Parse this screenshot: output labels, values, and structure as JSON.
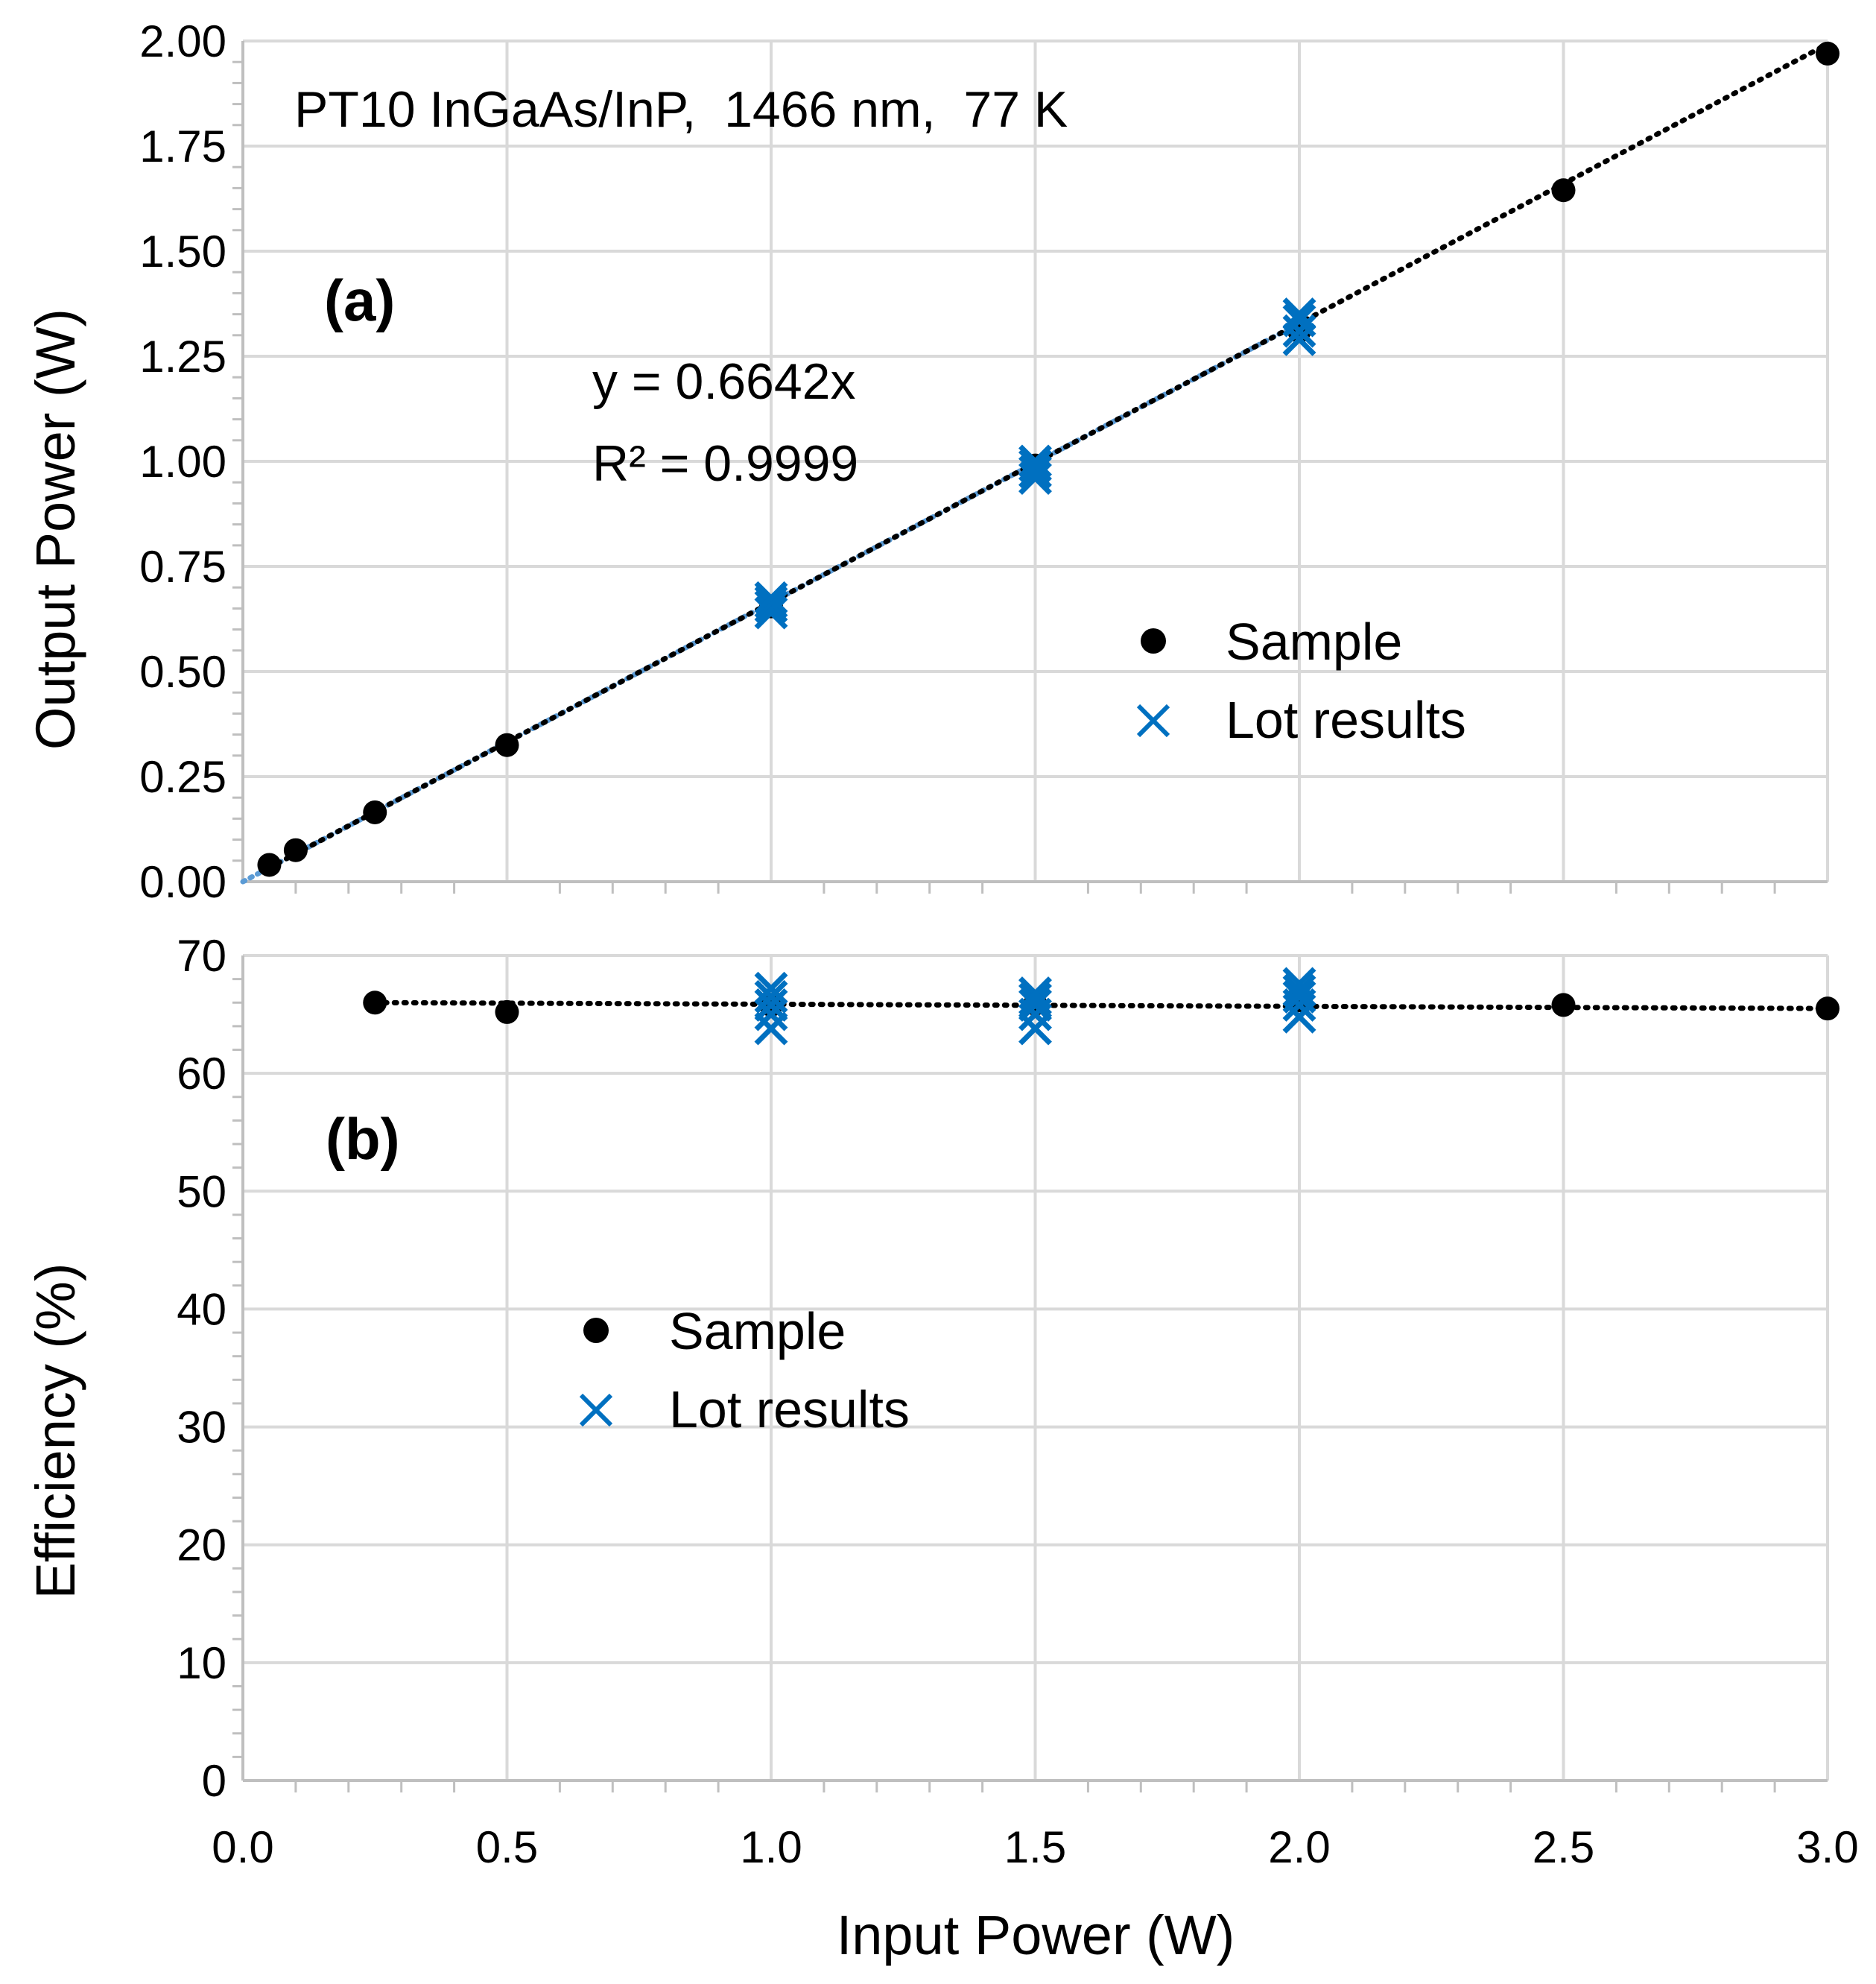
{
  "chart_data": [
    {
      "panel": "(a)",
      "type": "scatter",
      "annotation_title": "PT10 InGaAs/InP,  1466 nm,  77 K",
      "ylabel": "Output Power (W)",
      "xlabel": "",
      "xlim": [
        0,
        3
      ],
      "ylim": [
        0,
        2
      ],
      "x_ticks": [
        "0.0",
        "0.5",
        "1.0",
        "1.5",
        "2.0",
        "2.5",
        "3.0"
      ],
      "y_ticks": [
        "0.00",
        "0.25",
        "0.50",
        "0.75",
        "1.00",
        "1.25",
        "1.50",
        "1.75",
        "2.00"
      ],
      "fit": {
        "equation": "y = 0.6642x",
        "r2": "R² = 0.9999",
        "slope": 0.6642
      },
      "series": [
        {
          "name": "Sample",
          "marker": "circle",
          "color": "#000000",
          "x": [
            0.05,
            0.1,
            0.25,
            0.5,
            1.0,
            1.5,
            2.0,
            2.5,
            3.0
          ],
          "y": [
            0.04,
            0.075,
            0.165,
            0.325,
            0.655,
            0.99,
            1.31,
            1.645,
            1.97
          ]
        },
        {
          "name": "Lot results",
          "marker": "x",
          "color": "#0070c0",
          "x": [
            1.0,
            1.0,
            1.0,
            1.0,
            1.5,
            1.5,
            1.5,
            1.5,
            2.0,
            2.0,
            2.0,
            2.0
          ],
          "y": [
            0.64,
            0.655,
            0.665,
            0.675,
            0.96,
            0.975,
            0.99,
            1.0,
            1.29,
            1.31,
            1.335,
            1.35
          ]
        }
      ],
      "legend": [
        "Sample",
        "Lot results"
      ]
    },
    {
      "panel": "(b)",
      "type": "scatter",
      "ylabel": "Efficiency  (%)",
      "xlabel": "Input Power (W)",
      "xlim": [
        0,
        3
      ],
      "ylim": [
        0,
        70
      ],
      "x_ticks": [
        "0.0",
        "0.5",
        "1.0",
        "1.5",
        "2.0",
        "2.5",
        "3.0"
      ],
      "y_ticks": [
        "0",
        "10",
        "20",
        "30",
        "40",
        "50",
        "60",
        "70"
      ],
      "series": [
        {
          "name": "Sample",
          "marker": "circle",
          "color": "#000000",
          "x": [
            0.25,
            0.5,
            1.0,
            1.5,
            2.0,
            2.5,
            3.0
          ],
          "y": [
            66.0,
            65.2,
            65.8,
            65.9,
            66.2,
            65.8,
            65.5
          ]
        },
        {
          "name": "Lot results",
          "marker": "x",
          "color": "#0070c0",
          "x": [
            1.0,
            1.0,
            1.0,
            1.0,
            1.0,
            1.5,
            1.5,
            1.5,
            1.5,
            1.5,
            2.0,
            2.0,
            2.0,
            2.0,
            2.0
          ],
          "y": [
            63.8,
            65.0,
            65.8,
            66.5,
            67.2,
            63.8,
            65.0,
            65.8,
            66.3,
            66.8,
            64.8,
            65.8,
            66.5,
            67.0,
            67.6
          ]
        }
      ],
      "trendline": {
        "x": [
          0.25,
          3.0
        ],
        "y": [
          66.0,
          65.5
        ]
      },
      "legend": [
        "Sample",
        "Lot results"
      ]
    }
  ]
}
